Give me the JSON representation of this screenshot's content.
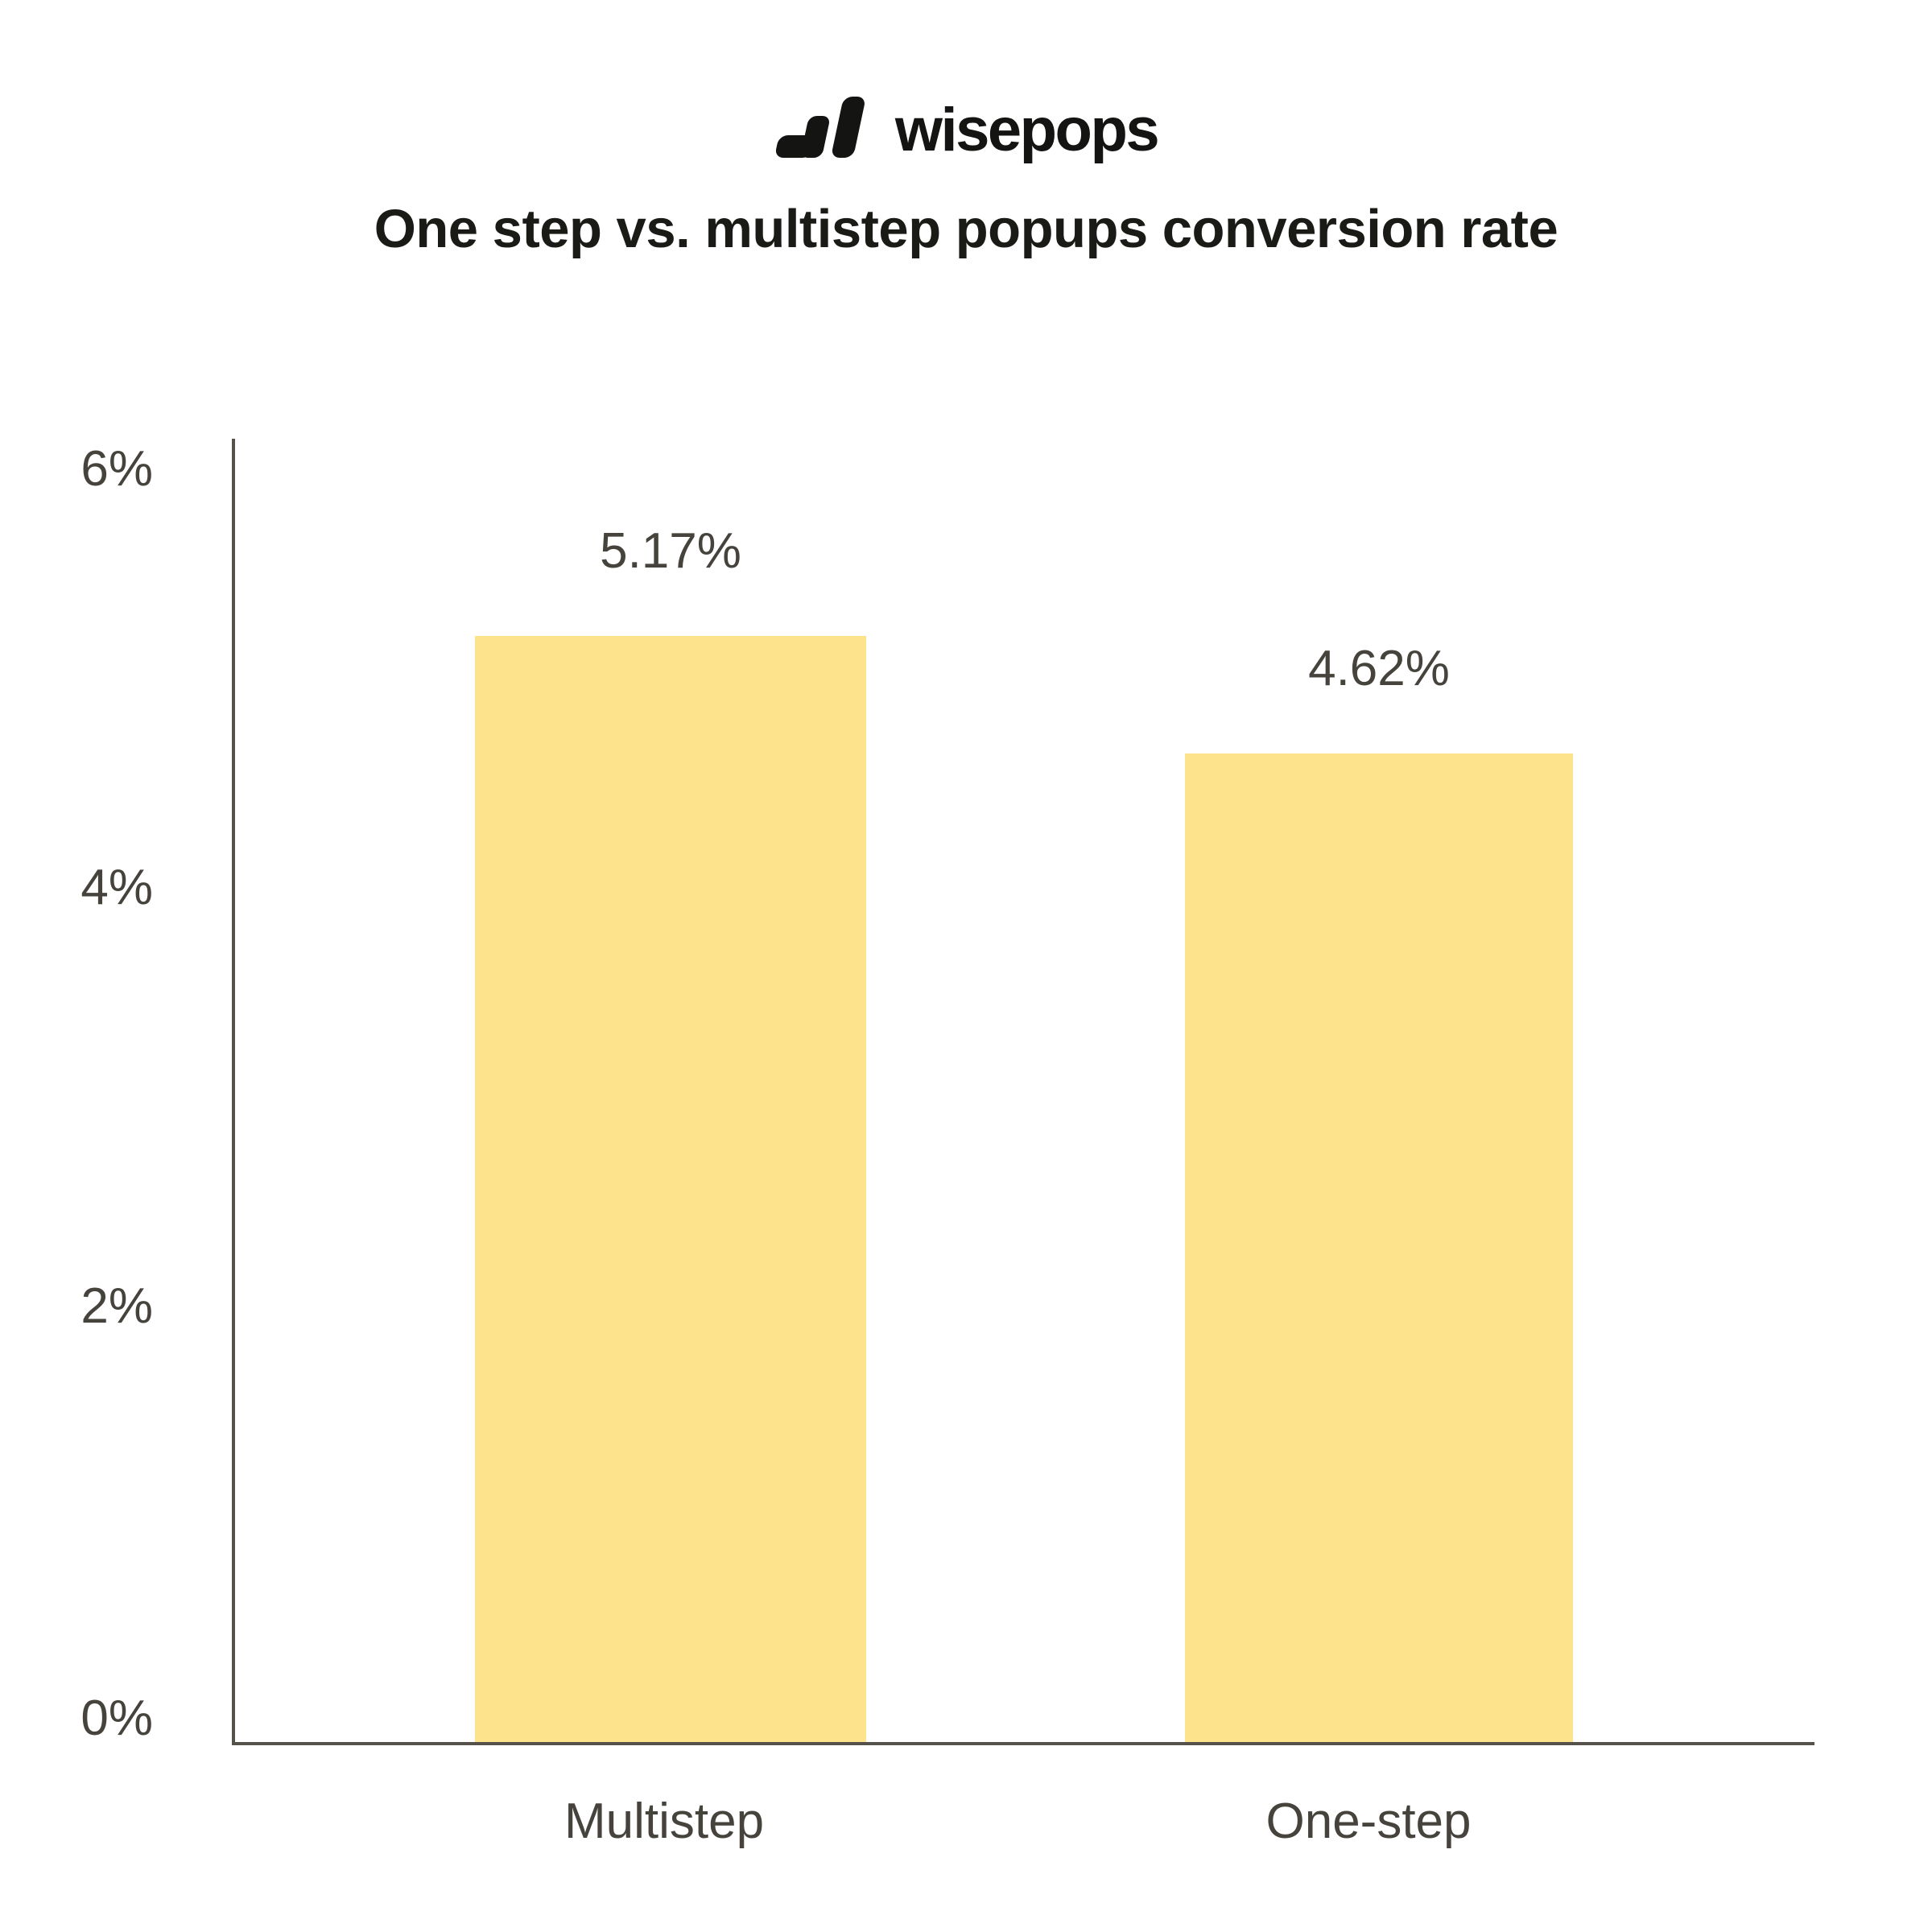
{
  "logo": {
    "brand": "wisepops"
  },
  "title": "One step vs. multistep popups conversion rate",
  "chart_data": {
    "type": "bar",
    "title": "One step vs. multistep popups conversion rate",
    "categories": [
      "Multistep",
      "One-step"
    ],
    "values": [
      5.17,
      4.62
    ],
    "value_labels": [
      "5.17%",
      "4.62%"
    ],
    "y_ticks": [
      "6%",
      "4%",
      "2%",
      "0%"
    ],
    "ylim": [
      0,
      6
    ],
    "xlabel": "",
    "ylabel": "",
    "grid": false,
    "legend": "none",
    "bar_color": "#fce38c",
    "label_color": "#45433c",
    "axis_color": "#54524b",
    "title_color": "#1a1a17"
  }
}
